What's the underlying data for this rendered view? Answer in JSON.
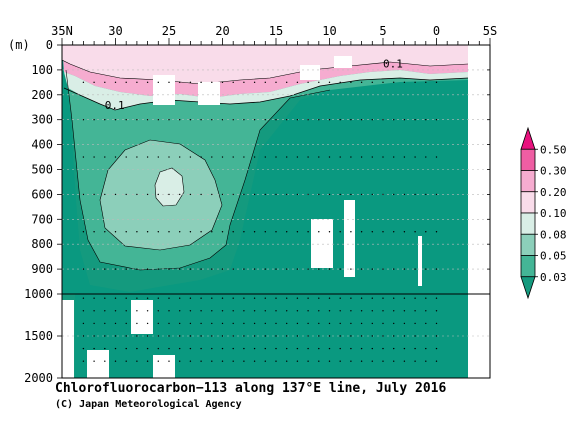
{
  "chart_data": {
    "type": "heatmap",
    "title": "Chlorofluorocarbon−113 along 137°E line, July 2016",
    "credit": "(C) Japan Meteorological Agency",
    "y_unit_label": "(m)",
    "x_axis": {
      "variable": "latitude",
      "ticks": [
        {
          "value": 35,
          "label": "35N"
        },
        {
          "value": 30,
          "label": "30"
        },
        {
          "value": 25,
          "label": "25"
        },
        {
          "value": 20,
          "label": "20"
        },
        {
          "value": 15,
          "label": "15"
        },
        {
          "value": 10,
          "label": "10"
        },
        {
          "value": 5,
          "label": "5"
        },
        {
          "value": 0,
          "label": "0"
        },
        {
          "value": -5,
          "label": "5S"
        }
      ],
      "range": [
        35,
        -5
      ]
    },
    "y_axis": {
      "variable": "depth",
      "upper_range": [
        0,
        1000
      ],
      "lower_range": [
        1000,
        2000
      ],
      "ticks": [
        {
          "value": 0,
          "label": "0"
        },
        {
          "value": 100,
          "label": "100"
        },
        {
          "value": 200,
          "label": "200"
        },
        {
          "value": 300,
          "label": "300"
        },
        {
          "value": 400,
          "label": "400"
        },
        {
          "value": 500,
          "label": "500"
        },
        {
          "value": 600,
          "label": "600"
        },
        {
          "value": 700,
          "label": "700"
        },
        {
          "value": 800,
          "label": "800"
        },
        {
          "value": 900,
          "label": "900"
        },
        {
          "value": 1000,
          "label": "1000"
        },
        {
          "value": 1500,
          "label": "1500"
        },
        {
          "value": 2000,
          "label": "2000"
        }
      ]
    },
    "contour_labels": [
      {
        "text": "0.1",
        "lat": 31.0,
        "depth": 240
      },
      {
        "text": "0.1",
        "lat": 5.0,
        "depth": 75
      }
    ],
    "colorbar": {
      "levels": [
        "0.50",
        "0.30",
        "0.20",
        "0.10",
        "0.08",
        "0.05",
        "0.03"
      ],
      "colors": [
        "#e8127e",
        "#ef5ea3",
        "#f6acd0",
        "#f9dcea",
        "#d9eee6",
        "#8ccfba",
        "#44b596",
        "#149a7e"
      ]
    },
    "colors": {
      "background_field": "#0a9980",
      "mid": "#44b596",
      "light": "#8ccfba",
      "pale": "#d9eee6",
      "pink_pale": "#f9dcea",
      "pink": "#f6acd0"
    }
  }
}
